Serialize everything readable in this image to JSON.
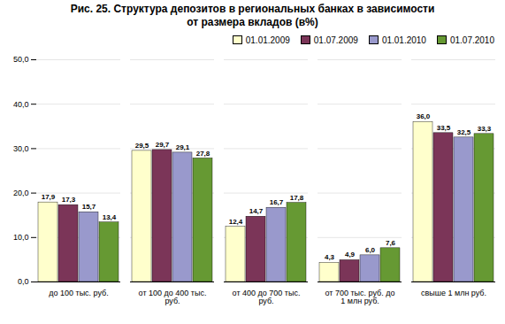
{
  "chart_data": {
    "type": "bar",
    "title": "Рис. 25. Структура депозитов в региональных банках в зависимости\nот размера вкладов (в%)",
    "categories": [
      "до 100 тыс. руб.",
      "от 100 до 400 тыс.\nруб.",
      "от 400 до 700 тыс.\nруб.",
      "от 700 тыс. руб. до\n1 млн руб.",
      "свыше 1 млн руб."
    ],
    "series": [
      {
        "name": "01.01.2009",
        "color": "#FFFFCC",
        "values": [
          17.9,
          29.5,
          12.4,
          4.3,
          36.0
        ],
        "value_labels": [
          "17,9",
          "29,5",
          "12,4",
          "4,3",
          "36,0"
        ]
      },
      {
        "name": "01.07.2009",
        "color": "#7B3558",
        "values": [
          17.3,
          29.7,
          14.7,
          4.9,
          33.5
        ],
        "value_labels": [
          "17,3",
          "29,7",
          "14,7",
          "4,9",
          "33,5"
        ]
      },
      {
        "name": "01.01.2010",
        "color": "#9999CC",
        "values": [
          15.7,
          29.1,
          16.7,
          6.0,
          32.5
        ],
        "value_labels": [
          "15,7",
          "29,1",
          "16,7",
          "6,0",
          "32,5"
        ]
      },
      {
        "name": "01.07.2010",
        "color": "#669933",
        "values": [
          13.4,
          27.8,
          17.8,
          7.6,
          33.3
        ],
        "value_labels": [
          "13,4",
          "27,8",
          "17,8",
          "7,6",
          "33,3"
        ]
      }
    ],
    "ylim": [
      0,
      50
    ],
    "yticks": [
      {
        "value": 0.0,
        "label": "0,0"
      },
      {
        "value": 10.0,
        "label": "10,0"
      },
      {
        "value": 20.0,
        "label": "20,0"
      },
      {
        "value": 30.0,
        "label": "30,0"
      },
      {
        "value": 40.0,
        "label": "40,0"
      },
      {
        "value": 50.0,
        "label": "50,0"
      }
    ],
    "grid": true,
    "legend": "upper right",
    "data_labels": true
  }
}
